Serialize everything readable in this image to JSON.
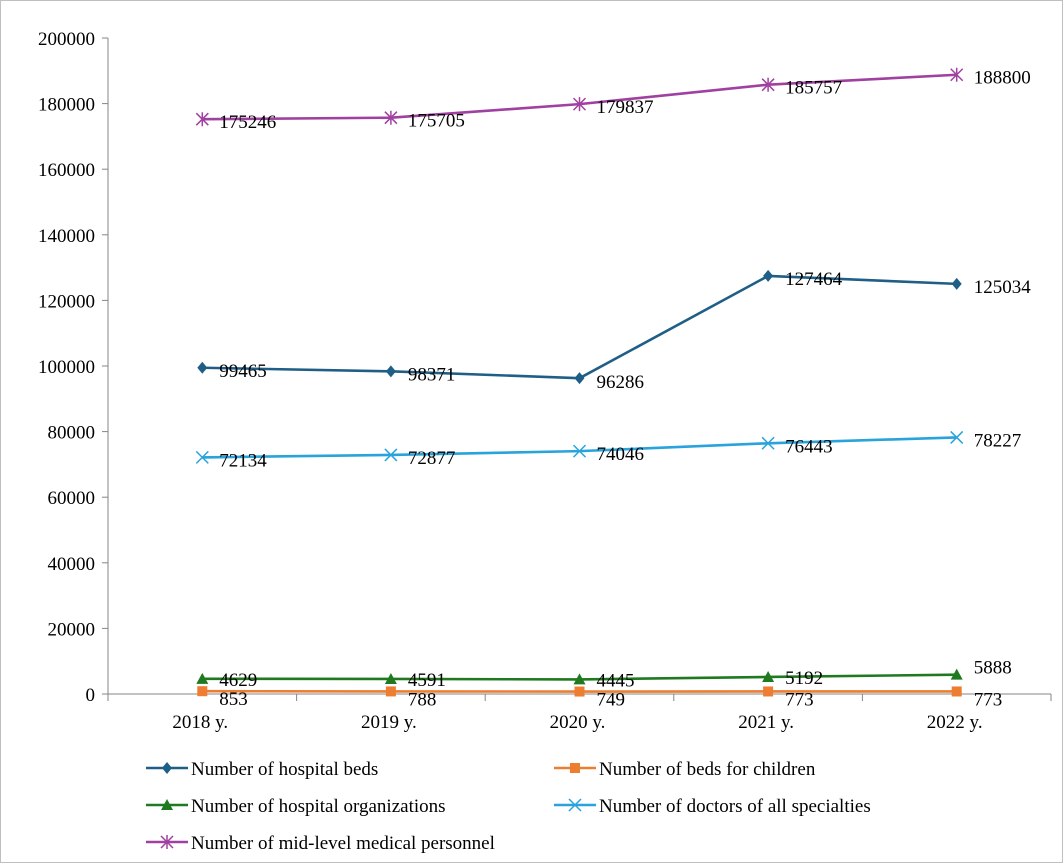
{
  "chart_data": {
    "type": "line",
    "categories": [
      "2018 y.",
      "2019 y.",
      "2020 y.",
      "2021 y.",
      "2022 y."
    ],
    "ylim": [
      0,
      200000
    ],
    "yticks": [
      0,
      20000,
      40000,
      60000,
      80000,
      100000,
      120000,
      140000,
      160000,
      180000,
      200000
    ],
    "grid": false,
    "legend_position": "bottom",
    "series": [
      {
        "key": "beds",
        "name": "Number of hospital beds",
        "color": "#1f5f87",
        "marker": "diamond",
        "values": [
          99465,
          98371,
          96286,
          127464,
          125034
        ]
      },
      {
        "key": "children",
        "name": "Number of beds for children",
        "color": "#ed7d31",
        "marker": "square",
        "values": [
          853,
          788,
          749,
          773,
          773
        ]
      },
      {
        "key": "orgs",
        "name": "Number of hospital organizations",
        "color": "#1f7a1f",
        "marker": "triangle",
        "values": [
          4629,
          4591,
          4445,
          5192,
          5888
        ]
      },
      {
        "key": "doctors",
        "name": "Number of doctors of all specialties",
        "color": "#29a3dc",
        "marker": "x",
        "values": [
          72134,
          72877,
          74046,
          76443,
          78227
        ]
      },
      {
        "key": "midlevel",
        "name": "Number of mid-level medical personnel",
        "color": "#a040a0",
        "marker": "star",
        "values": [
          175246,
          175705,
          179837,
          185757,
          188800
        ]
      }
    ]
  }
}
